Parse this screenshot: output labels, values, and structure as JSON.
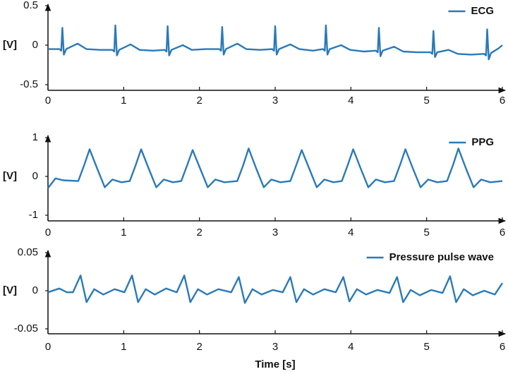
{
  "chart_data": [
    {
      "type": "line",
      "ylabel": "[V]",
      "legend": "upper right",
      "xlim": [
        0,
        6
      ],
      "xticks": [
        0,
        1,
        2,
        3,
        4,
        5,
        6
      ],
      "ylim": [
        -0.5,
        0.5
      ],
      "yticks": [
        -0.5,
        0,
        0.5
      ],
      "x": [
        0,
        0.15,
        0.175,
        0.19,
        0.21,
        0.24,
        0.39,
        0.51,
        0.69,
        0.85,
        0.875,
        0.89,
        0.91,
        0.94,
        1.09,
        1.21,
        1.39,
        1.54,
        1.565,
        1.58,
        1.6,
        1.63,
        1.78,
        1.9,
        2.08,
        2.26,
        2.285,
        2.3,
        2.32,
        2.35,
        2.5,
        2.62,
        2.8,
        2.96,
        2.985,
        3.0,
        3.02,
        3.05,
        3.2,
        3.32,
        3.5,
        3.63,
        3.655,
        3.67,
        3.69,
        3.72,
        3.87,
        3.99,
        4.17,
        4.33,
        4.355,
        4.37,
        4.39,
        4.42,
        4.57,
        4.69,
        4.87,
        5.05,
        5.075,
        5.09,
        5.11,
        5.14,
        5.29,
        5.41,
        5.59,
        5.76,
        5.785,
        5.8,
        5.82,
        5.85,
        5.95,
        6.0
      ],
      "series": [
        {
          "name": "ECG",
          "color": "#2a7ab8",
          "values": [
            -0.05,
            -0.05,
            -0.07,
            0.22,
            -0.12,
            -0.05,
            0.02,
            -0.05,
            -0.06,
            -0.06,
            -0.08,
            0.25,
            -0.13,
            -0.06,
            0.01,
            -0.06,
            -0.07,
            -0.06,
            -0.08,
            0.24,
            -0.13,
            -0.06,
            0.0,
            -0.06,
            -0.05,
            -0.05,
            -0.07,
            0.23,
            -0.12,
            -0.05,
            0.02,
            -0.05,
            -0.06,
            -0.05,
            -0.07,
            0.24,
            -0.12,
            -0.05,
            0.01,
            -0.05,
            -0.07,
            -0.05,
            -0.07,
            0.25,
            -0.12,
            -0.05,
            0.0,
            -0.06,
            -0.08,
            -0.07,
            -0.09,
            0.22,
            -0.14,
            -0.07,
            -0.02,
            -0.08,
            -0.09,
            -0.09,
            -0.11,
            0.18,
            -0.15,
            -0.09,
            -0.06,
            -0.11,
            -0.12,
            -0.11,
            -0.13,
            0.2,
            -0.18,
            -0.1,
            -0.04,
            0.0
          ]
        }
      ]
    },
    {
      "type": "line",
      "ylabel": "[V]",
      "legend": "upper right",
      "xlim": [
        0,
        6
      ],
      "xticks": [
        0,
        1,
        2,
        3,
        4,
        5,
        6
      ],
      "ylim": [
        -1,
        1
      ],
      "yticks": [
        -1,
        0,
        1
      ],
      "x": [
        0,
        0.1,
        0.2,
        0.4,
        0.48,
        0.55,
        0.65,
        0.75,
        0.85,
        0.97,
        1.08,
        1.16,
        1.23,
        1.33,
        1.43,
        1.53,
        1.65,
        1.76,
        1.84,
        1.91,
        2.01,
        2.11,
        2.21,
        2.33,
        2.5,
        2.58,
        2.65,
        2.75,
        2.85,
        2.95,
        3.07,
        3.2,
        3.28,
        3.35,
        3.45,
        3.55,
        3.65,
        3.77,
        3.88,
        3.96,
        4.03,
        4.13,
        4.23,
        4.33,
        4.45,
        4.57,
        4.65,
        4.72,
        4.82,
        4.92,
        5.02,
        5.14,
        5.27,
        5.35,
        5.42,
        5.52,
        5.62,
        5.72,
        5.84,
        6.0
      ],
      "series": [
        {
          "name": "PPG",
          "color": "#2a7ab8",
          "values": [
            -0.3,
            -0.05,
            -0.1,
            -0.12,
            0.3,
            0.7,
            0.2,
            -0.28,
            -0.08,
            -0.15,
            -0.12,
            0.3,
            0.7,
            0.2,
            -0.28,
            -0.08,
            -0.15,
            -0.12,
            0.3,
            0.68,
            0.2,
            -0.28,
            -0.08,
            -0.15,
            -0.12,
            0.3,
            0.72,
            0.2,
            -0.28,
            -0.08,
            -0.15,
            -0.12,
            0.3,
            0.68,
            0.2,
            -0.28,
            -0.08,
            -0.15,
            -0.12,
            0.3,
            0.7,
            0.2,
            -0.28,
            -0.08,
            -0.15,
            -0.12,
            0.3,
            0.7,
            0.2,
            -0.28,
            -0.08,
            -0.15,
            -0.12,
            0.3,
            0.72,
            0.2,
            -0.28,
            -0.08,
            -0.15,
            -0.12
          ]
        }
      ]
    },
    {
      "type": "line",
      "ylabel": "[V]",
      "xlabel": "Time [s]",
      "legend": "upper right",
      "xlim": [
        0,
        6
      ],
      "xticks": [
        0,
        1,
        2,
        3,
        4,
        5,
        6
      ],
      "ylim": [
        -0.05,
        0.05
      ],
      "yticks": [
        -0.05,
        0,
        0.05
      ],
      "x": [
        0,
        0.15,
        0.25,
        0.33,
        0.43,
        0.51,
        0.61,
        0.73,
        0.88,
        1.01,
        1.11,
        1.19,
        1.29,
        1.41,
        1.56,
        1.7,
        1.8,
        1.88,
        1.98,
        2.1,
        2.25,
        2.42,
        2.52,
        2.6,
        2.7,
        2.82,
        2.97,
        3.1,
        3.2,
        3.28,
        3.38,
        3.5,
        3.65,
        3.8,
        3.9,
        3.98,
        4.08,
        4.2,
        4.35,
        4.51,
        4.61,
        4.69,
        4.79,
        4.91,
        5.06,
        5.21,
        5.31,
        5.39,
        5.49,
        5.61,
        5.76,
        5.9,
        6.0
      ],
      "series": [
        {
          "name": "Pressure pulse wave",
          "color": "#2a7ab8",
          "values": [
            -0.002,
            0.003,
            -0.002,
            -0.002,
            0.02,
            -0.015,
            0.002,
            -0.005,
            0.002,
            -0.002,
            0.02,
            -0.015,
            0.002,
            -0.005,
            0.003,
            -0.002,
            0.02,
            -0.015,
            0.002,
            -0.005,
            0.002,
            -0.002,
            0.018,
            -0.016,
            0.002,
            -0.005,
            0.001,
            -0.002,
            0.018,
            -0.015,
            0.002,
            -0.005,
            0.002,
            -0.002,
            0.018,
            -0.014,
            0.002,
            -0.005,
            0.001,
            -0.003,
            0.018,
            -0.015,
            0.001,
            -0.006,
            0.001,
            -0.003,
            0.019,
            -0.015,
            0.002,
            -0.006,
            0.0,
            -0.005,
            0.01
          ]
        }
      ]
    }
  ]
}
